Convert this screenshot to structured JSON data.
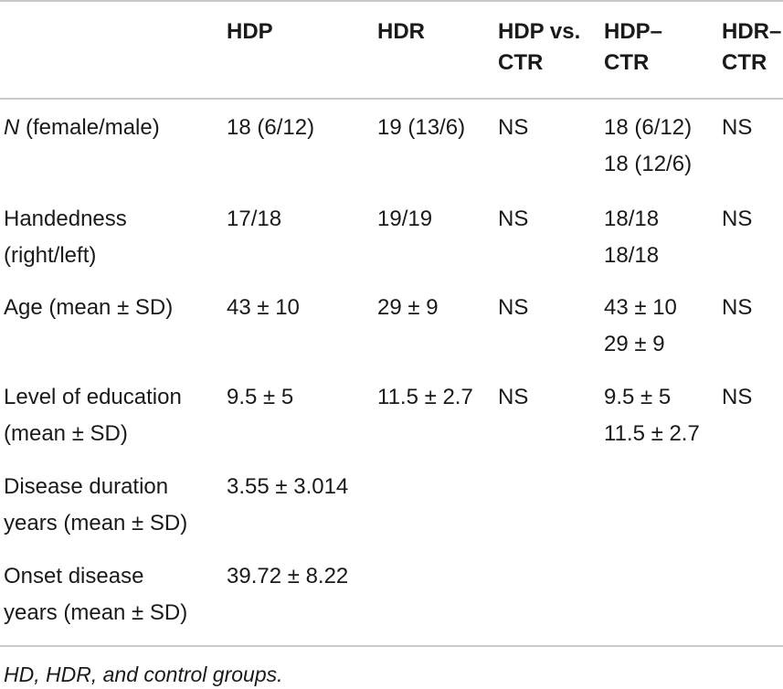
{
  "header": {
    "col1": "HDP",
    "col2": "HDR",
    "col3": "HDP vs.\nCTR",
    "col4": "HDP–\nCTR",
    "col5": "HDR–\nCTR"
  },
  "rows": [
    {
      "label_prefix": "N",
      "label": " (female/male)",
      "hdp": "18 (6/12)",
      "hdr": "19 (13/6)",
      "hdp_vs_ctr": "NS",
      "hdp_ctr": "18 (6/12)\n18 (12/6)",
      "hdr_ctr": "NS"
    },
    {
      "label": "Handedness\n(right/left)",
      "hdp": "17/18",
      "hdr": "19/19",
      "hdp_vs_ctr": "NS",
      "hdp_ctr": "18/18\n18/18",
      "hdr_ctr": "NS"
    },
    {
      "label": "Age (mean ± SD)",
      "hdp": "43 ± 10",
      "hdr": "29 ± 9",
      "hdp_vs_ctr": "NS",
      "hdp_ctr": "43 ± 10\n29 ± 9",
      "hdr_ctr": "NS"
    },
    {
      "label": "Level of education\n(mean ± SD)",
      "hdp": "9.5 ± 5",
      "hdr": "11.5 ± 2.7",
      "hdp_vs_ctr": "NS",
      "hdp_ctr": "9.5 ± 5\n11.5 ± 2.7",
      "hdr_ctr": "NS"
    },
    {
      "label": "Disease duration\nyears (mean ± SD)",
      "hdp": "3.55 ± 3.014",
      "hdr": "",
      "hdp_vs_ctr": "",
      "hdp_ctr": "",
      "hdr_ctr": ""
    },
    {
      "label": "Onset disease\nyears (mean ± SD)",
      "hdp": "39.72 ± 8.22",
      "hdr": "",
      "hdp_vs_ctr": "",
      "hdp_ctr": "",
      "hdr_ctr": ""
    }
  ],
  "footnote": "HD, HDR, and control groups."
}
